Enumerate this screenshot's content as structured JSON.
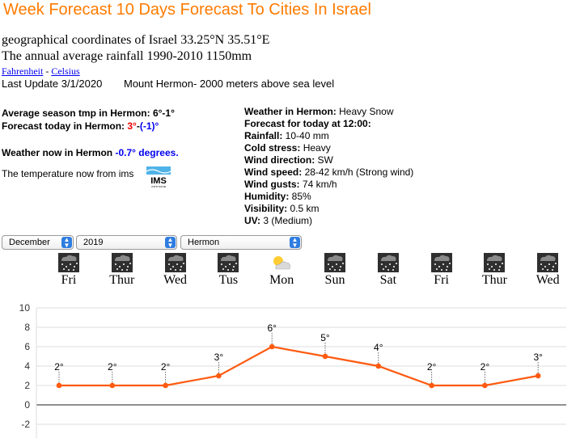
{
  "title": "Week Forecast 10 Days Forecast To Cities In Israel",
  "coords": "geographical coordinates of Israel 33.25°N 35.51°E",
  "rainfall": "The annual average rainfall 1990-2010 1150mm",
  "units": {
    "fahrenheit": "Fahrenheit",
    "sep": " - ",
    "celsius": "Celsius"
  },
  "last_update": "Last Update 3/1/2020",
  "mount_note": "Mount Hermon- 2000 meters above sea level",
  "avg": {
    "label": "Average season tmp in Hermon:",
    "value": "6°-1°"
  },
  "today": {
    "label": "Forecast today in Hermon:",
    "max": "3°",
    "dash": "-",
    "min": "(-1)°"
  },
  "now": {
    "label": "Weather now in Hermon",
    "value": "-0.7° degrees."
  },
  "from_ims": "The temperature now from ims",
  "ims_logo": {
    "text": "IMS",
    "subtext": "מטאורולוגיה"
  },
  "details": [
    {
      "label": "Weather in Hermon:",
      "value": "Heavy Snow",
      "label_bold": true
    },
    {
      "label": "Forecast for today at 12:00:",
      "value": "",
      "label_bold": true
    },
    {
      "label": "Rainfall:",
      "value": "10-40 mm",
      "label_bold": true
    },
    {
      "label": "Cold stress:",
      "value": "Heavy",
      "label_bold": true
    },
    {
      "label": "Wind direction:",
      "value": "SW",
      "label_bold": true
    },
    {
      "label": "Wind speed:",
      "value": "28-42 km/h (Strong wind)",
      "label_bold": true
    },
    {
      "label": "Wind gusts:",
      "value": "74 km/h",
      "label_bold": true
    },
    {
      "label": "Humidity:",
      "value": "85%",
      "label_bold": true
    },
    {
      "label": "Visibility:",
      "value": "0.5 km",
      "label_bold": true
    },
    {
      "label": "UV:",
      "value": "3 (Medium)",
      "label_bold": true
    }
  ],
  "selects": {
    "month": "December",
    "year": "2019",
    "place": "Hermon"
  },
  "days": [
    {
      "label": "Fri",
      "icon": "snow-icon"
    },
    {
      "label": "Thur",
      "icon": "snow-icon"
    },
    {
      "label": "Wed",
      "icon": "snow-icon"
    },
    {
      "label": "Tus",
      "icon": "snow-icon"
    },
    {
      "label": "Mon",
      "icon": "partly-sunny-icon"
    },
    {
      "label": "Sun",
      "icon": "snow-icon"
    },
    {
      "label": "Sat",
      "icon": "snow-icon"
    },
    {
      "label": "Fri",
      "icon": "snow-icon"
    },
    {
      "label": "Thur",
      "icon": "snow-icon"
    },
    {
      "label": "Wed",
      "icon": "snow-icon"
    }
  ],
  "colors": {
    "title": "#ff7b00",
    "line": "#ff5a0f",
    "blue": "#0000ee",
    "red": "#ee0000"
  },
  "chart_data": {
    "type": "line",
    "title": "",
    "xlabel": "",
    "ylabel": "",
    "categories": [
      "Fri",
      "Thur",
      "Wed",
      "Tus",
      "Mon",
      "Sun",
      "Sat",
      "Fri",
      "Thur",
      "Wed"
    ],
    "series": [
      {
        "values": [
          2,
          2,
          2,
          3,
          6,
          5,
          4,
          2,
          2,
          3
        ]
      }
    ],
    "data_labels": [
      "2°",
      "2°",
      "2°",
      "3°",
      "6°",
      "5°",
      "4°",
      "2°",
      "2°",
      "3°"
    ],
    "ylim": [
      -2,
      10
    ],
    "yticks": [
      -2,
      0,
      2,
      4,
      6,
      8,
      10
    ],
    "grid": true,
    "legend": "none"
  }
}
